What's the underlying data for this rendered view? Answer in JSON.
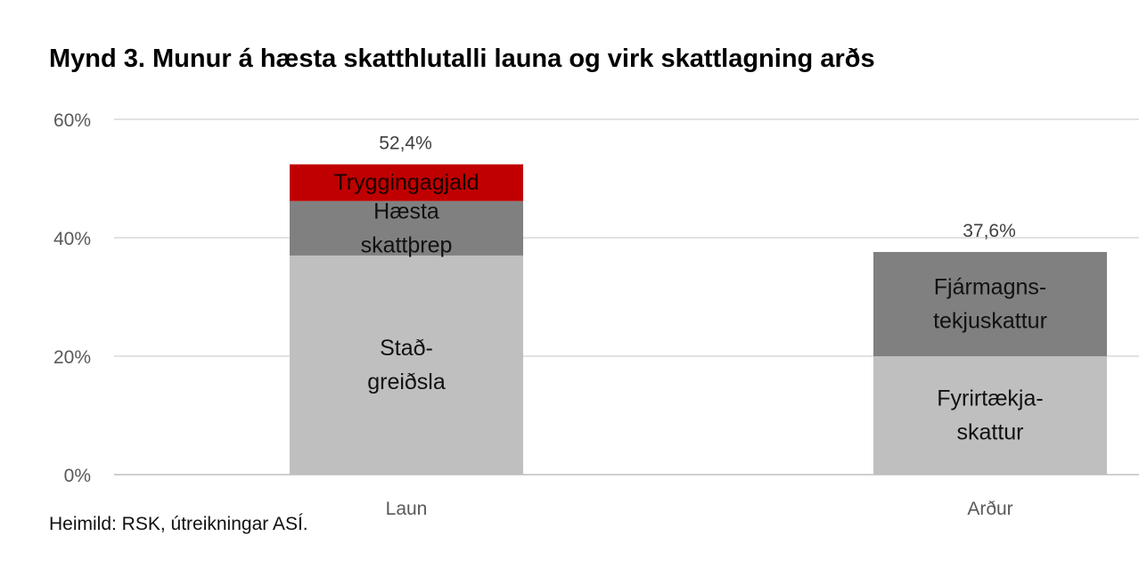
{
  "title": "Mynd 3. Munur á hæsta skatthlutalli launa og virk skattlagning arðs",
  "source": "Heimild: RSK, útreikningar ASÍ.",
  "chart_data": {
    "type": "bar",
    "stacked": true,
    "title": "Mynd 3. Munur á hæsta skatthlutalli launa og virk skattlagning arðs",
    "categories": [
      "Laun",
      "Arður"
    ],
    "ylim": [
      0,
      60
    ],
    "yticks": [
      0,
      20,
      40,
      60
    ],
    "ytick_labels": [
      "0%",
      "20%",
      "40%",
      "60%"
    ],
    "grid": true,
    "totals": [
      52.4,
      37.6
    ],
    "total_labels": [
      "52,4%",
      "37,6%"
    ],
    "segments": [
      {
        "category": "Laun",
        "label_lines": [
          "Stað-",
          "greiðsla"
        ],
        "value": 37.0,
        "color": "#bfbfbf"
      },
      {
        "category": "Laun",
        "label_lines": [
          "Hæsta",
          "skattþrep"
        ],
        "value": 9.2,
        "color": "#808080"
      },
      {
        "category": "Laun",
        "label_lines": [
          "Tryggingagjald"
        ],
        "value": 6.2,
        "color": "#c00000"
      },
      {
        "category": "Arður",
        "label_lines": [
          "Fyrirtækja-",
          "skattur"
        ],
        "value": 20.0,
        "color": "#bfbfbf"
      },
      {
        "category": "Arður",
        "label_lines": [
          "Fjármagns-",
          "tekjuskattur"
        ],
        "value": 17.6,
        "color": "#808080"
      }
    ]
  }
}
